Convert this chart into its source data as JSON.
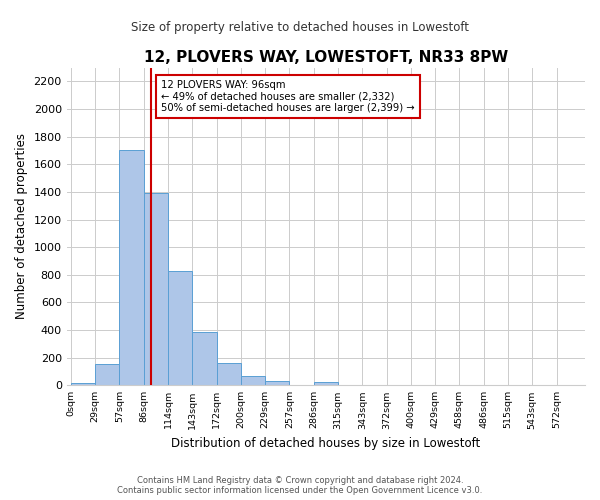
{
  "title": "12, PLOVERS WAY, LOWESTOFT, NR33 8PW",
  "subtitle": "Size of property relative to detached houses in Lowestoft",
  "xlabel": "Distribution of detached houses by size in Lowestoft",
  "ylabel": "Number of detached properties",
  "bar_labels": [
    "0sqm",
    "29sqm",
    "57sqm",
    "86sqm",
    "114sqm",
    "143sqm",
    "172sqm",
    "200sqm",
    "229sqm",
    "257sqm",
    "286sqm",
    "315sqm",
    "343sqm",
    "372sqm",
    "400sqm",
    "429sqm",
    "458sqm",
    "486sqm",
    "515sqm",
    "543sqm",
    "572sqm"
  ],
  "bar_values": [
    15,
    155,
    1700,
    1395,
    825,
    385,
    160,
    65,
    30,
    0,
    25,
    0,
    0,
    0,
    0,
    0,
    0,
    0,
    0,
    0,
    0
  ],
  "bar_color": "#aec6e8",
  "bar_edge_color": "#5a9fd4",
  "property_line_x": 96,
  "property_line_color": "#cc0000",
  "annotation_title": "12 PLOVERS WAY: 96sqm",
  "annotation_line1": "← 49% of detached houses are smaller (2,332)",
  "annotation_line2": "50% of semi-detached houses are larger (2,399) →",
  "annotation_box_color": "#ffffff",
  "annotation_box_edge": "#cc0000",
  "ylim": [
    0,
    2300
  ],
  "yticks": [
    0,
    200,
    400,
    600,
    800,
    1000,
    1200,
    1400,
    1600,
    1800,
    2000,
    2200
  ],
  "footer_line1": "Contains HM Land Registry data © Crown copyright and database right 2024.",
  "footer_line2": "Contains public sector information licensed under the Open Government Licence v3.0.",
  "bin_width": 29
}
